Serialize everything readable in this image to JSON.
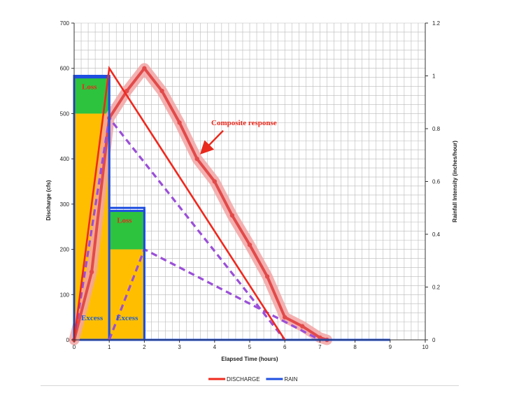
{
  "colors": {
    "discharge": "#f0281e",
    "rain": "#1f4fe0",
    "composite": "#e24a4a",
    "composite_glow": "#f2a3a3",
    "dashed": "#9a4fd8",
    "excess_fill": "#ffbf00",
    "loss_fill": "#2dc33e",
    "grid": "#b9b9b9"
  },
  "chart_data": {
    "type": "line",
    "xlabel": "Elapsed Time (hours)",
    "ylabel": "Discharge (cfs)",
    "y2label": "Rainfall Intensity (inches/hour)",
    "xlim": [
      0,
      10
    ],
    "ylim": [
      0,
      700
    ],
    "y2lim": [
      0,
      1.2
    ],
    "x_ticks": [
      "0",
      "1",
      "2",
      "3",
      "4",
      "5",
      "6",
      "7",
      "8",
      "9",
      "10"
    ],
    "y_ticks": [
      "0",
      "100",
      "200",
      "300",
      "400",
      "500",
      "600",
      "700"
    ],
    "y2_ticks": [
      "0",
      "0.2",
      "0.4",
      "0.6",
      "0.8",
      "1",
      "1.2"
    ],
    "grid": true,
    "legend": {
      "placement": "bottom",
      "entries": [
        {
          "label": "DISCHARGE",
          "series": "DISCHARGE"
        },
        {
          "label": "RAIN",
          "series": "RAIN"
        }
      ]
    },
    "series": [
      {
        "name": "DISCHARGE",
        "x": [
          0,
          1,
          6
        ],
        "y": [
          0,
          600,
          0
        ]
      },
      {
        "name": "RAIN",
        "axis": "right",
        "x": [
          0,
          0,
          1,
          1,
          2,
          2,
          9
        ],
        "y": [
          0,
          1.0,
          1.0,
          0.5,
          0.5,
          0,
          0
        ]
      }
    ],
    "composite_response": {
      "x": [
        0,
        0.5,
        1,
        1.5,
        2,
        2.5,
        3,
        3.5,
        4,
        4.5,
        5,
        5.5,
        6,
        6.5,
        7,
        7.2
      ],
      "y": [
        0,
        150,
        490,
        550,
        600,
        550,
        480,
        400,
        350,
        275,
        210,
        140,
        50,
        30,
        5,
        0
      ]
    },
    "component_hydrographs": [
      {
        "x": [
          0,
          1,
          6
        ],
        "y": [
          0,
          490,
          0
        ]
      },
      {
        "x": [
          1,
          2,
          7
        ],
        "y": [
          0,
          200,
          0
        ]
      }
    ],
    "rain_blocks": [
      {
        "x0": 0,
        "x1": 1,
        "excess_top": 500,
        "loss_top": 580,
        "loss_label": "Loss",
        "excess_label": "Excess"
      },
      {
        "x0": 1,
        "x1": 2,
        "excess_top": 200,
        "loss_top": 285,
        "loss_label": "Loss",
        "excess_label": "Excess"
      }
    ],
    "annotations": [
      {
        "text": "Composite response",
        "x": 5,
        "y": 490,
        "arrow_to": [
          3.65,
          415
        ]
      }
    ]
  }
}
